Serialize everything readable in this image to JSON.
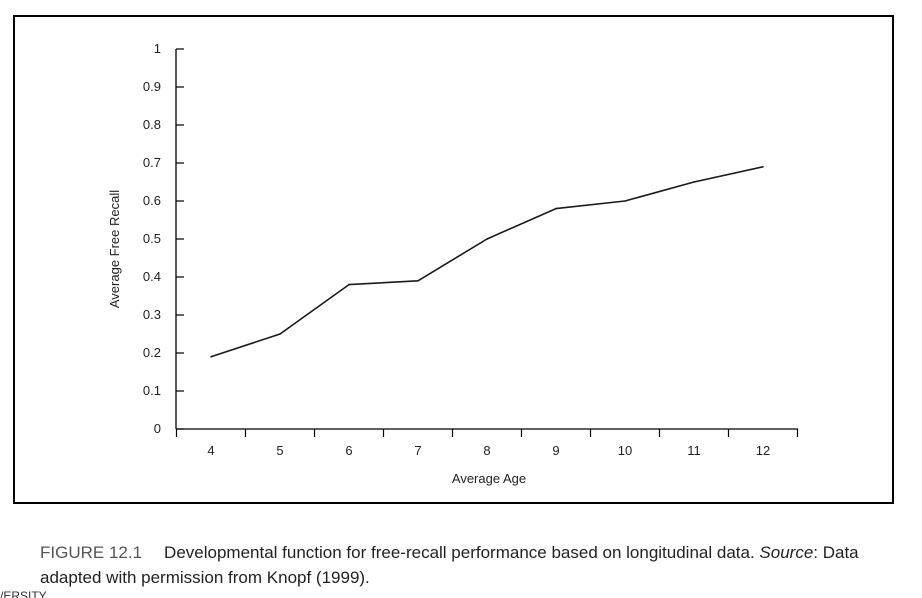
{
  "chart_data": {
    "type": "line",
    "title": "",
    "xlabel": "Average Age",
    "ylabel": "Average Free Recall",
    "x": [
      4,
      5,
      6,
      7,
      8,
      9,
      10,
      11,
      12
    ],
    "series": [
      {
        "values": [
          0.19,
          0.25,
          0.38,
          0.39,
          0.5,
          0.58,
          0.6,
          0.65,
          0.69
        ]
      }
    ],
    "x_ticks": [
      "4",
      "5",
      "6",
      "7",
      "8",
      "9",
      "10",
      "11",
      "12"
    ],
    "y_ticks": [
      "0",
      "0.1",
      "0.2",
      "0.3",
      "0.4",
      "0.5",
      "0.6",
      "0.7",
      "0.8",
      "0.9",
      "1"
    ],
    "ylim": [
      0,
      1
    ],
    "grid": false,
    "legend": "none",
    "line_color": "#1a1a1a"
  },
  "caption": {
    "figure_number": "FIGURE 12.1",
    "text_part1": "Developmental function for free-recall performance based on longitudinal data. ",
    "source_label": "Source",
    "text_part2": ": Data adapted with permission from Knopf (1999)."
  },
  "cut_off_text": "/ERSITY"
}
